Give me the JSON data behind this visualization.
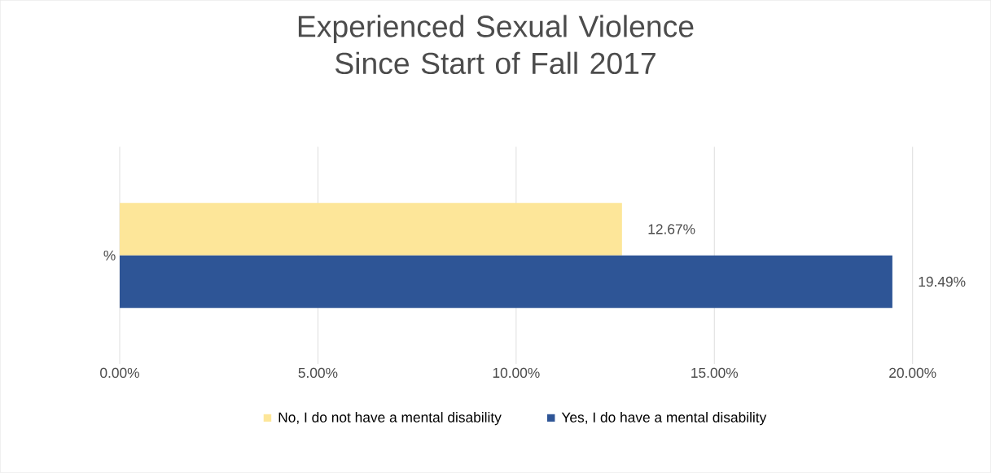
{
  "chart_data": {
    "type": "bar",
    "orientation": "horizontal",
    "title": "Experienced Sexual Violence Since Start of Fall 2017",
    "categories": [
      "%"
    ],
    "series": [
      {
        "name": "No, I do not have a mental disability",
        "color": "#fde699",
        "values": [
          12.67
        ],
        "value_labels": [
          "12.67%"
        ]
      },
      {
        "name": "Yes, I do have a mental disability",
        "color": "#2e5596",
        "values": [
          19.49
        ],
        "value_labels": [
          "19.49%"
        ]
      }
    ],
    "xlim": [
      0,
      20
    ],
    "xticks": [
      {
        "value": 0,
        "label": "0.00%"
      },
      {
        "value": 5,
        "label": "5.00%"
      },
      {
        "value": 10,
        "label": "10.00%"
      },
      {
        "value": 15,
        "label": "15.00%"
      },
      {
        "value": 20,
        "label": "20.00%"
      }
    ],
    "grid": "x",
    "legend": "bottom"
  }
}
